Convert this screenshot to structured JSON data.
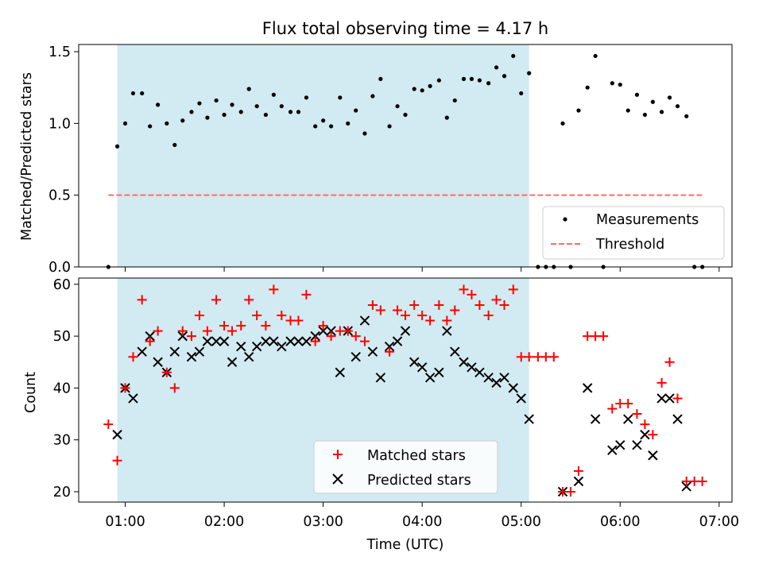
{
  "colors": {
    "background": "#ffffff",
    "observing_window": "#add8e6",
    "measurement": "#000000",
    "threshold": "#ff6b6b",
    "matched": "#ff0000",
    "predicted": "#000000"
  },
  "chart_data": [
    {
      "type": "scatter",
      "title": "Flux total observing time = 4.17 h",
      "xlabel": "",
      "ylabel": "Matched/Predicted stars",
      "xlim": [
        0.53,
        7.13
      ],
      "ylim": [
        0,
        1.55
      ],
      "yticks": [
        0,
        0.5,
        1.0,
        1.5
      ],
      "ytick_labels": [
        "0.0",
        "0.5",
        "1.0",
        "1.5"
      ],
      "shaded_span": [
        0.92,
        5.08
      ],
      "legend": {
        "placement": "bottom-right",
        "entries": [
          "Measurements",
          "Threshold"
        ]
      },
      "threshold": {
        "name": "Threshold",
        "value": 0.5,
        "x_range": [
          0.83,
          6.83
        ]
      },
      "series": [
        {
          "name": "Measurements",
          "x": [
            0.83,
            0.92,
            1.0,
            1.08,
            1.17,
            1.25,
            1.33,
            1.42,
            1.5,
            1.58,
            1.67,
            1.75,
            1.83,
            1.92,
            2.0,
            2.08,
            2.17,
            2.25,
            2.33,
            2.42,
            2.5,
            2.58,
            2.67,
            2.75,
            2.83,
            2.92,
            3.0,
            3.08,
            3.17,
            3.25,
            3.33,
            3.42,
            3.5,
            3.58,
            3.67,
            3.75,
            3.83,
            3.92,
            4.0,
            4.08,
            4.17,
            4.25,
            4.33,
            4.42,
            4.5,
            4.58,
            4.67,
            4.75,
            4.83,
            4.92,
            5.0,
            5.08,
            5.17,
            5.25,
            5.33,
            5.42,
            5.5,
            5.58,
            5.67,
            5.75,
            5.83,
            5.92,
            6.0,
            6.08,
            6.17,
            6.25,
            6.33,
            6.42,
            6.5,
            6.58,
            6.67,
            6.75,
            6.83
          ],
          "y": [
            0.0,
            0.84,
            1.0,
            1.21,
            1.21,
            0.98,
            1.13,
            1.0,
            0.85,
            1.02,
            1.08,
            1.14,
            1.04,
            1.16,
            1.06,
            1.13,
            1.08,
            1.24,
            1.12,
            1.06,
            1.2,
            1.12,
            1.08,
            1.08,
            1.18,
            0.98,
            1.02,
            0.98,
            1.18,
            1.0,
            1.09,
            0.93,
            1.19,
            1.31,
            0.98,
            1.12,
            1.06,
            1.24,
            1.23,
            1.26,
            1.3,
            1.04,
            1.16,
            1.31,
            1.31,
            1.3,
            1.28,
            1.39,
            1.33,
            1.47,
            1.21,
            1.35,
            0.0,
            0.0,
            0.0,
            1.0,
            0.0,
            1.09,
            1.25,
            1.47,
            0.0,
            1.28,
            1.27,
            1.09,
            1.2,
            1.06,
            1.15,
            1.08,
            1.18,
            1.12,
            1.05,
            0.0,
            0.0
          ]
        }
      ]
    },
    {
      "type": "scatter",
      "title": "",
      "xlabel": "Time (UTC)",
      "ylabel": "Count",
      "xlim": [
        0.53,
        7.13
      ],
      "ylim": [
        18,
        61.2
      ],
      "yticks": [
        20,
        30,
        40,
        50,
        60
      ],
      "ytick_labels": [
        "20",
        "30",
        "40",
        "50",
        "60"
      ],
      "xticks": [
        1,
        2,
        3,
        4,
        5,
        6,
        7
      ],
      "xtick_labels": [
        "01:00",
        "02:00",
        "03:00",
        "04:00",
        "05:00",
        "06:00",
        "07:00"
      ],
      "shaded_span": [
        0.92,
        5.08
      ],
      "legend": {
        "placement": "bottom-center",
        "entries": [
          "Matched stars",
          "Predicted stars"
        ]
      },
      "series": [
        {
          "name": "Matched stars",
          "marker": "plus",
          "x": [
            0.83,
            0.92,
            1.0,
            1.08,
            1.17,
            1.25,
            1.33,
            1.42,
            1.5,
            1.58,
            1.67,
            1.75,
            1.83,
            1.92,
            2.0,
            2.08,
            2.17,
            2.25,
            2.33,
            2.42,
            2.5,
            2.58,
            2.67,
            2.75,
            2.83,
            2.92,
            3.0,
            3.08,
            3.17,
            3.25,
            3.33,
            3.42,
            3.5,
            3.58,
            3.67,
            3.75,
            3.83,
            3.92,
            4.0,
            4.08,
            4.17,
            4.25,
            4.33,
            4.42,
            4.5,
            4.58,
            4.67,
            4.75,
            4.83,
            4.92,
            5.0,
            5.08,
            5.17,
            5.25,
            5.33,
            5.42,
            5.5,
            5.58,
            5.67,
            5.75,
            5.83,
            5.92,
            6.0,
            6.08,
            6.17,
            6.25,
            6.33,
            6.42,
            6.5,
            6.58,
            6.67,
            6.75,
            6.83
          ],
          "y": [
            33,
            26,
            40,
            46,
            57,
            49,
            51,
            43,
            40,
            51,
            50,
            54,
            51,
            57,
            52,
            51,
            52,
            57,
            54,
            52,
            59,
            54,
            53,
            53,
            58,
            49,
            52,
            50,
            51,
            51,
            50,
            49,
            56,
            55,
            47,
            55,
            54,
            56,
            54,
            53,
            56,
            53,
            55,
            59,
            58,
            56,
            54,
            57,
            56,
            59,
            46,
            46,
            46,
            46,
            46,
            20,
            20,
            24,
            50,
            50,
            50,
            36,
            37,
            37,
            35,
            33,
            31,
            41,
            45,
            38,
            22,
            22,
            22
          ]
        },
        {
          "name": "Predicted stars",
          "marker": "x",
          "x": [
            0.92,
            1.0,
            1.08,
            1.17,
            1.25,
            1.33,
            1.42,
            1.5,
            1.58,
            1.67,
            1.75,
            1.83,
            1.92,
            2.0,
            2.08,
            2.17,
            2.25,
            2.33,
            2.42,
            2.5,
            2.58,
            2.67,
            2.75,
            2.83,
            2.92,
            3.0,
            3.08,
            3.17,
            3.25,
            3.33,
            3.42,
            3.5,
            3.58,
            3.67,
            3.75,
            3.83,
            3.92,
            4.0,
            4.08,
            4.17,
            4.25,
            4.33,
            4.42,
            4.5,
            4.58,
            4.67,
            4.75,
            4.83,
            4.92,
            5.0,
            5.08,
            5.42,
            5.58,
            5.67,
            5.75,
            5.92,
            6.0,
            6.08,
            6.17,
            6.25,
            6.33,
            6.42,
            6.5,
            6.58,
            6.67
          ],
          "y": [
            31,
            40,
            38,
            47,
            50,
            45,
            43,
            47,
            50,
            46,
            47,
            49,
            49,
            49,
            45,
            48,
            46,
            48,
            49,
            49,
            48,
            49,
            49,
            49,
            50,
            51,
            51,
            43,
            51,
            46,
            53,
            47,
            42,
            48,
            49,
            51,
            45,
            44,
            42,
            43,
            51,
            47,
            45,
            44,
            43,
            42,
            41,
            42,
            40,
            38,
            34,
            20,
            22,
            40,
            34,
            28,
            29,
            34,
            29,
            31,
            27,
            38,
            38,
            34,
            21
          ]
        }
      ]
    }
  ]
}
